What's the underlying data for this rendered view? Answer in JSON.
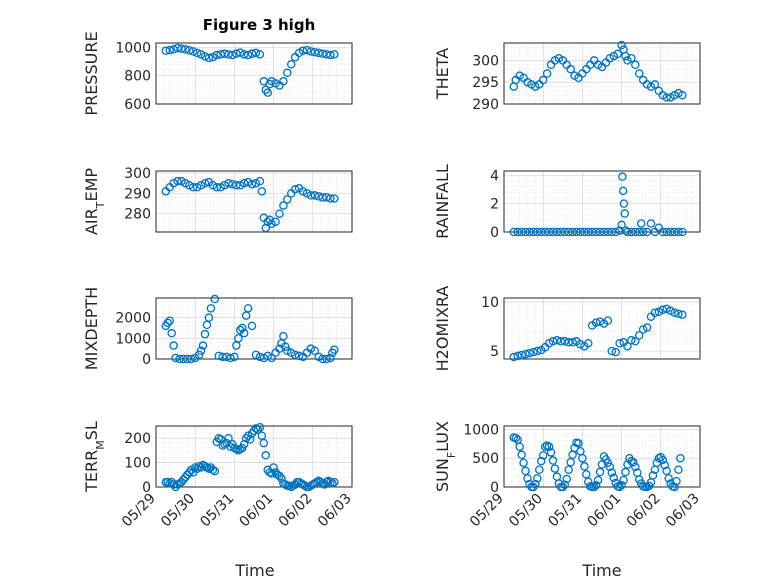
{
  "figure": {
    "title": "Figure 3 high",
    "xlabel_left": "Time",
    "xlabel_right": "Time",
    "marker_color": "#0072BD"
  },
  "chart_data": [
    {
      "type": "scatter",
      "id": "pressure",
      "ylabel": "PRESSURE",
      "ylabel_sub": null,
      "title": "Figure 3 high",
      "xlim": [
        29.0,
        34.0
      ],
      "ylim": [
        600,
        1030
      ],
      "yticks": [
        600,
        800,
        1000
      ],
      "ytick_labels": [
        "600",
        "800",
        "1000"
      ],
      "grid": true,
      "x": [
        29.25,
        29.35,
        29.45,
        29.55,
        29.65,
        29.75,
        29.85,
        29.95,
        30.05,
        30.15,
        30.25,
        30.35,
        30.45,
        30.55,
        30.65,
        30.75,
        30.85,
        30.95,
        31.05,
        31.15,
        31.25,
        31.35,
        31.45,
        31.55,
        31.65,
        31.75,
        31.8,
        31.85,
        31.9,
        31.95,
        32.05,
        32.15,
        32.25,
        32.35,
        32.45,
        32.55,
        32.65,
        32.75,
        32.85,
        32.95,
        33.05,
        33.15,
        33.25,
        33.35,
        33.45,
        33.55
      ],
      "y": [
        975,
        980,
        985,
        995,
        990,
        985,
        978,
        970,
        960,
        950,
        935,
        925,
        930,
        945,
        950,
        955,
        950,
        945,
        955,
        962,
        950,
        945,
        955,
        960,
        950,
        760,
        700,
        680,
        740,
        760,
        745,
        730,
        760,
        820,
        880,
        930,
        960,
        975,
        980,
        970,
        965,
        960,
        955,
        950,
        945,
        950
      ]
    },
    {
      "type": "scatter",
      "id": "theta",
      "ylabel": "THETA",
      "ylabel_sub": null,
      "xlim": [
        29.0,
        34.0
      ],
      "ylim": [
        290,
        304
      ],
      "yticks": [
        290,
        295,
        300
      ],
      "ytick_labels": [
        "290",
        "295",
        "300"
      ],
      "grid": true,
      "x": [
        29.25,
        29.3,
        29.4,
        29.5,
        29.6,
        29.7,
        29.8,
        29.9,
        30.0,
        30.1,
        30.2,
        30.3,
        30.4,
        30.5,
        30.6,
        30.7,
        30.8,
        30.9,
        31.0,
        31.1,
        31.2,
        31.3,
        31.4,
        31.5,
        31.6,
        31.7,
        31.8,
        31.9,
        32.0,
        32.05,
        32.1,
        32.15,
        32.25,
        32.35,
        32.45,
        32.55,
        32.65,
        32.75,
        32.85,
        32.95,
        33.05,
        33.15,
        33.25,
        33.35,
        33.45,
        33.55
      ],
      "y": [
        294,
        295.5,
        296.5,
        296,
        295,
        294.5,
        294,
        294.5,
        295.5,
        297,
        299,
        300,
        300.5,
        300,
        299,
        298,
        296.5,
        296,
        297,
        298,
        299,
        300,
        299,
        298.5,
        299.5,
        300.5,
        301,
        301.5,
        303.5,
        302.5,
        301,
        300,
        300.5,
        299,
        297,
        295.5,
        294.5,
        294,
        294.5,
        293,
        292,
        291.5,
        291.5,
        292,
        292.5,
        292
      ]
    },
    {
      "type": "scatter",
      "id": "air-temp",
      "ylabel": "AIR",
      "ylabel_sub": "T",
      "ylabel_post": "EMP",
      "xlim": [
        29.0,
        34.0
      ],
      "ylim": [
        271,
        301
      ],
      "yticks": [
        280,
        290,
        300
      ],
      "ytick_labels": [
        "280",
        "290",
        "300"
      ],
      "grid": true,
      "x": [
        29.25,
        29.35,
        29.45,
        29.55,
        29.65,
        29.75,
        29.85,
        29.95,
        30.05,
        30.15,
        30.25,
        30.35,
        30.45,
        30.55,
        30.65,
        30.75,
        30.85,
        30.95,
        31.05,
        31.15,
        31.25,
        31.35,
        31.45,
        31.55,
        31.65,
        31.7,
        31.75,
        31.8,
        31.85,
        31.9,
        31.95,
        32.05,
        32.15,
        32.25,
        32.35,
        32.45,
        32.55,
        32.65,
        32.75,
        32.85,
        32.95,
        33.05,
        33.15,
        33.25,
        33.35,
        33.45,
        33.55
      ],
      "y": [
        291,
        293,
        295,
        296,
        296,
        295,
        294,
        293,
        293,
        294,
        295,
        295.5,
        294,
        293,
        293,
        294,
        295,
        294.5,
        294,
        294,
        295,
        295.5,
        294.5,
        295,
        296,
        291,
        278,
        273,
        276,
        277,
        275,
        276,
        280,
        284,
        287,
        290,
        292,
        292.5,
        291,
        290,
        289,
        289,
        288.5,
        288,
        288,
        287.5,
        287.5
      ]
    },
    {
      "type": "scatter",
      "id": "rainfall",
      "ylabel": "RAINFALL",
      "ylabel_sub": null,
      "xlim": [
        29.0,
        34.0
      ],
      "ylim": [
        0,
        4.3
      ],
      "yticks": [
        0,
        2,
        4
      ],
      "ytick_labels": [
        "0",
        "2",
        "4"
      ],
      "grid": true,
      "x": [
        29.25,
        29.35,
        29.45,
        29.55,
        29.65,
        29.75,
        29.85,
        29.95,
        30.05,
        30.15,
        30.25,
        30.35,
        30.45,
        30.55,
        30.65,
        30.75,
        30.85,
        30.95,
        31.05,
        31.15,
        31.25,
        31.35,
        31.45,
        31.55,
        31.65,
        31.75,
        31.85,
        31.95,
        32.0,
        32.02,
        32.04,
        32.06,
        32.08,
        32.1,
        32.15,
        32.25,
        32.35,
        32.45,
        32.5,
        32.55,
        32.65,
        32.75,
        32.85,
        32.95,
        33.05,
        33.15,
        33.25,
        33.35,
        33.45,
        33.55
      ],
      "y": [
        0,
        0,
        0,
        0,
        0,
        0,
        0,
        0,
        0,
        0,
        0,
        0,
        0,
        0,
        0,
        0,
        0,
        0,
        0,
        0,
        0,
        0,
        0,
        0,
        0,
        0,
        0,
        0.1,
        0.5,
        3.9,
        2.9,
        2.0,
        1.3,
        0.1,
        0,
        0,
        0,
        0,
        0.6,
        0,
        0,
        0.6,
        0,
        0.3,
        0,
        0,
        0,
        0,
        0,
        0
      ]
    },
    {
      "type": "scatter",
      "id": "mixdepth",
      "ylabel": "MIXDEPTH",
      "ylabel_sub": null,
      "xlim": [
        29.0,
        34.0
      ],
      "ylim": [
        0,
        2950
      ],
      "yticks": [
        0,
        1000,
        2000
      ],
      "ytick_labels": [
        "0",
        "1000",
        "2000"
      ],
      "grid": true,
      "x": [
        29.25,
        29.3,
        29.35,
        29.4,
        29.45,
        29.5,
        29.6,
        29.7,
        29.8,
        29.9,
        30.0,
        30.1,
        30.15,
        30.2,
        30.25,
        30.3,
        30.35,
        30.4,
        30.5,
        30.6,
        30.7,
        30.8,
        30.9,
        31.0,
        31.05,
        31.1,
        31.15,
        31.2,
        31.25,
        31.3,
        31.35,
        31.45,
        31.55,
        31.65,
        31.75,
        31.85,
        31.95,
        32.05,
        32.15,
        32.2,
        32.25,
        32.3,
        32.35,
        32.45,
        32.55,
        32.65,
        32.75,
        32.85,
        32.95,
        33.05,
        33.15,
        33.25,
        33.35,
        33.45,
        33.5,
        33.55
      ],
      "y": [
        1600,
        1750,
        1850,
        1250,
        650,
        50,
        0,
        0,
        0,
        0,
        50,
        200,
        400,
        650,
        1200,
        1650,
        2000,
        2450,
        2900,
        150,
        100,
        100,
        50,
        100,
        650,
        1000,
        1400,
        1500,
        1250,
        2100,
        2450,
        1600,
        200,
        100,
        50,
        150,
        50,
        300,
        500,
        750,
        1100,
        600,
        400,
        300,
        200,
        150,
        100,
        300,
        500,
        400,
        100,
        0,
        0,
        50,
        300,
        450
      ]
    },
    {
      "type": "scatter",
      "id": "h2omixra",
      "ylabel": "H2OMIXRA",
      "ylabel_sub": null,
      "xlim": [
        29.0,
        34.0
      ],
      "ylim": [
        4.2,
        10.4
      ],
      "yticks": [
        5,
        10
      ],
      "ytick_labels": [
        "5",
        "10"
      ],
      "grid": true,
      "x": [
        29.25,
        29.35,
        29.45,
        29.55,
        29.65,
        29.75,
        29.85,
        29.95,
        30.05,
        30.15,
        30.25,
        30.35,
        30.45,
        30.55,
        30.65,
        30.75,
        30.85,
        30.95,
        31.05,
        31.15,
        31.25,
        31.35,
        31.45,
        31.55,
        31.65,
        31.75,
        31.85,
        31.95,
        32.05,
        32.15,
        32.25,
        32.35,
        32.45,
        32.55,
        32.65,
        32.75,
        32.85,
        32.95,
        33.05,
        33.15,
        33.25,
        33.35,
        33.45,
        33.55
      ],
      "y": [
        4.4,
        4.5,
        4.6,
        4.7,
        4.8,
        4.9,
        5.0,
        5.1,
        5.4,
        5.8,
        6.0,
        6.1,
        6.0,
        6.0,
        5.9,
        5.9,
        6.0,
        5.7,
        5.5,
        5.8,
        7.6,
        7.9,
        8.0,
        7.8,
        8.1,
        5.0,
        4.9,
        5.8,
        5.9,
        5.5,
        6.1,
        6.0,
        6.6,
        7.2,
        7.4,
        8.5,
        8.9,
        9.0,
        9.2,
        9.3,
        9.1,
        8.9,
        8.8,
        8.7
      ]
    },
    {
      "type": "scatter",
      "id": "terr-msl",
      "ylabel": "TERR",
      "ylabel_sub": "M",
      "ylabel_post": "SL",
      "xlim": [
        29.0,
        34.0
      ],
      "ylim": [
        0,
        250
      ],
      "yticks": [
        0,
        100,
        200
      ],
      "ytick_labels": [
        "0",
        "100",
        "200"
      ],
      "grid": true,
      "x": [
        29.25,
        29.3,
        29.35,
        29.4,
        29.45,
        29.5,
        29.55,
        29.6,
        29.65,
        29.7,
        29.75,
        29.8,
        29.85,
        29.9,
        29.95,
        30.0,
        30.05,
        30.1,
        30.15,
        30.2,
        30.25,
        30.3,
        30.35,
        30.4,
        30.45,
        30.5,
        30.55,
        30.6,
        30.65,
        30.7,
        30.75,
        30.8,
        30.85,
        30.9,
        30.95,
        31.0,
        31.05,
        31.1,
        31.15,
        31.2,
        31.25,
        31.3,
        31.35,
        31.4,
        31.45,
        31.5,
        31.55,
        31.6,
        31.65,
        31.7,
        31.75,
        31.8,
        31.85,
        31.9,
        31.95,
        32.0,
        32.05,
        32.1,
        32.15,
        32.2,
        32.25,
        32.3,
        32.35,
        32.4,
        32.45,
        32.5,
        32.55,
        32.6,
        32.65,
        32.7,
        32.75,
        32.8,
        32.85,
        32.9,
        32.95,
        33.0,
        33.05,
        33.1,
        33.15,
        33.2,
        33.25,
        33.3,
        33.35,
        33.4,
        33.45,
        33.5,
        33.55
      ],
      "y": [
        20,
        20,
        15,
        20,
        10,
        0,
        10,
        15,
        20,
        30,
        40,
        50,
        60,
        70,
        60,
        80,
        75,
        85,
        80,
        90,
        85,
        80,
        75,
        80,
        70,
        65,
        185,
        200,
        195,
        170,
        175,
        180,
        200,
        165,
        175,
        160,
        155,
        150,
        155,
        160,
        175,
        200,
        210,
        195,
        220,
        230,
        240,
        235,
        245,
        210,
        180,
        130,
        70,
        60,
        55,
        80,
        60,
        50,
        45,
        35,
        15,
        10,
        5,
        5,
        0,
        5,
        10,
        20,
        20,
        15,
        10,
        5,
        0,
        0,
        5,
        10,
        15,
        20,
        25,
        20,
        15,
        10,
        20,
        25,
        20,
        15,
        20
      ]
    },
    {
      "type": "scatter",
      "id": "sun-flux",
      "ylabel": "SUN",
      "ylabel_sub": "F",
      "ylabel_post": "LUX",
      "xlim": [
        29.0,
        34.0
      ],
      "ylim": [
        0,
        1060
      ],
      "yticks": [
        0,
        500,
        1000
      ],
      "ytick_labels": [
        "0",
        "500",
        "1000"
      ],
      "grid": true,
      "x": [
        29.25,
        29.3,
        29.35,
        29.4,
        29.45,
        29.5,
        29.55,
        29.6,
        29.65,
        29.7,
        29.75,
        29.8,
        29.85,
        29.9,
        29.95,
        30.0,
        30.05,
        30.1,
        30.15,
        30.2,
        30.25,
        30.3,
        30.35,
        30.4,
        30.45,
        30.5,
        30.55,
        30.6,
        30.65,
        30.7,
        30.75,
        30.8,
        30.85,
        30.9,
        30.95,
        31.0,
        31.05,
        31.1,
        31.15,
        31.2,
        31.25,
        31.3,
        31.35,
        31.4,
        31.45,
        31.5,
        31.55,
        31.6,
        31.65,
        31.7,
        31.75,
        31.8,
        31.85,
        31.9,
        31.95,
        32.0,
        32.05,
        32.1,
        32.15,
        32.2,
        32.25,
        32.3,
        32.35,
        32.4,
        32.45,
        32.5,
        32.55,
        32.6,
        32.65,
        32.7,
        32.75,
        32.8,
        32.85,
        32.9,
        32.95,
        33.0,
        33.05,
        33.1,
        33.15,
        33.2,
        33.25,
        33.3,
        33.35,
        33.4,
        33.45,
        33.5
      ],
      "y": [
        860,
        850,
        820,
        700,
        560,
        420,
        280,
        150,
        50,
        0,
        0,
        50,
        150,
        300,
        450,
        550,
        700,
        720,
        700,
        600,
        460,
        320,
        180,
        60,
        0,
        0,
        40,
        140,
        300,
        430,
        560,
        680,
        770,
        760,
        620,
        500,
        360,
        220,
        90,
        10,
        0,
        0,
        30,
        120,
        260,
        390,
        530,
        480,
        420,
        350,
        250,
        160,
        70,
        10,
        0,
        30,
        120,
        260,
        390,
        500,
        450,
        430,
        350,
        250,
        130,
        60,
        10,
        0,
        0,
        20,
        80,
        200,
        300,
        420,
        500,
        520,
        470,
        380,
        280,
        150,
        60,
        10,
        0,
        100,
        300,
        500
      ]
    }
  ],
  "x_axis": {
    "ticks": [
      29.0,
      30.0,
      31.0,
      32.0,
      33.0,
      34.0
    ],
    "tick_labels": [
      "05/29",
      "05/30",
      "05/31",
      "06/01",
      "06/02",
      "06/03"
    ]
  }
}
